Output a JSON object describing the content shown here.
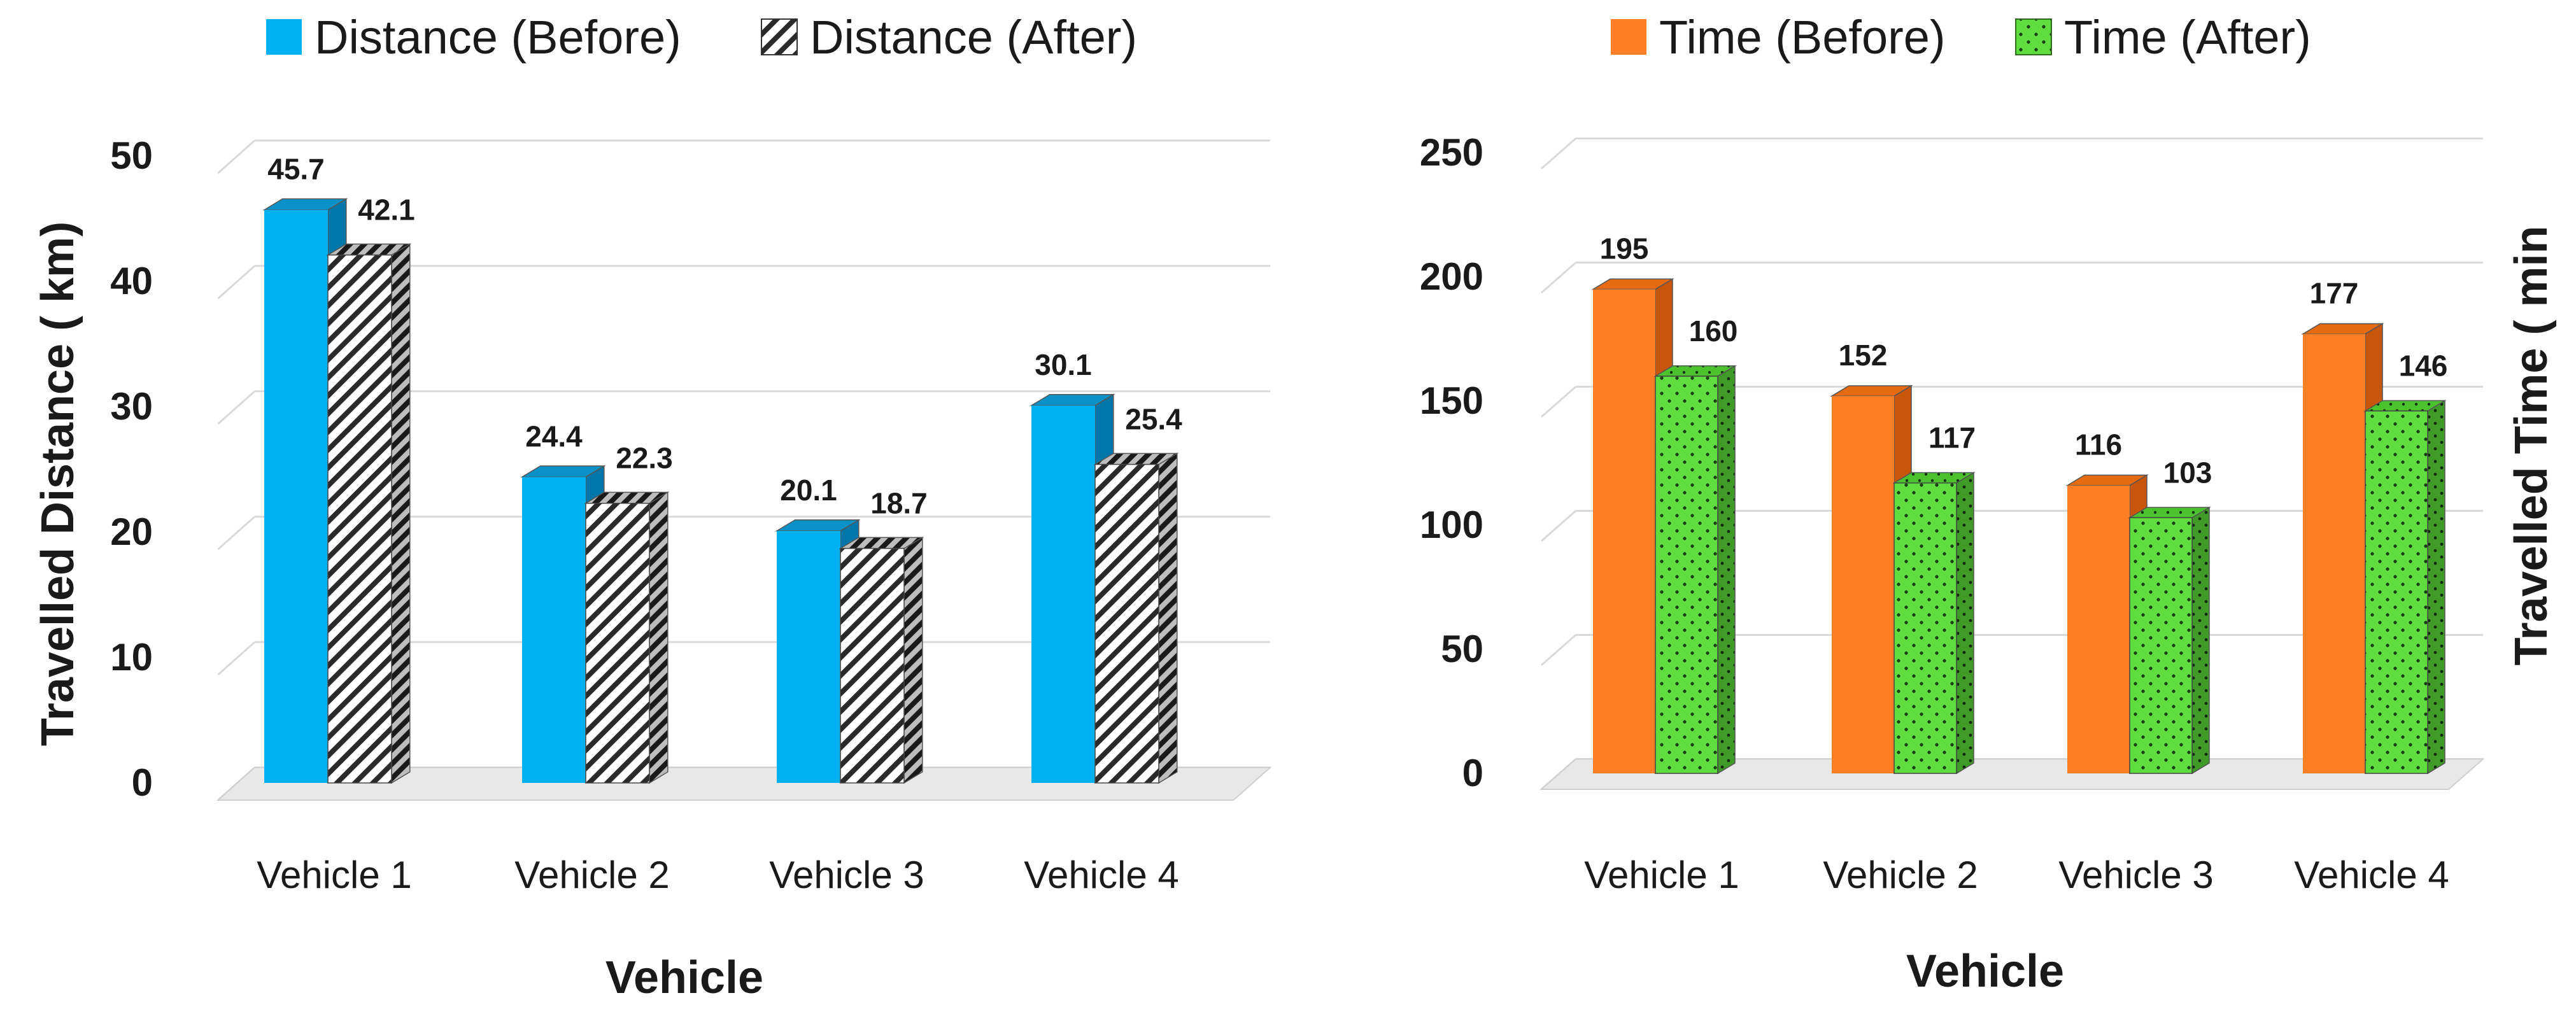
{
  "chart_data": [
    {
      "type": "bar",
      "title": "",
      "xlabel": "Vehicle",
      "ylabel": "Travelled Distance ( km)",
      "ylim": [
        0,
        50
      ],
      "yticks": [
        0,
        10,
        20,
        30,
        40,
        50
      ],
      "categories": [
        "Vehicle 1",
        "Vehicle 2",
        "Vehicle 3",
        "Vehicle 4"
      ],
      "series": [
        {
          "name": "Distance (Before)",
          "values": [
            45.7,
            24.4,
            20.1,
            30.1
          ],
          "color": "#00b0f0",
          "pattern": "solid"
        },
        {
          "name": "Distance (After)",
          "values": [
            42.1,
            22.3,
            18.7,
            25.4
          ],
          "color": "#ffffff",
          "pattern": "diagonal-stripes"
        }
      ],
      "legend": "top-center",
      "ylabel_side": "left"
    },
    {
      "type": "bar",
      "title": "",
      "xlabel": "Vehicle",
      "ylabel": "Travelled Time ( min",
      "ylim": [
        0,
        250
      ],
      "yticks": [
        0,
        50,
        100,
        150,
        200,
        250
      ],
      "categories": [
        "Vehicle 1",
        "Vehicle 2",
        "Vehicle 3",
        "Vehicle 4"
      ],
      "series": [
        {
          "name": "Time (Before)",
          "values": [
            195,
            152,
            116,
            177
          ],
          "color": "#ff7f27",
          "pattern": "solid"
        },
        {
          "name": "Time (After)",
          "values": [
            160,
            117,
            103,
            146
          ],
          "color": "#5fdc3e",
          "pattern": "dots"
        }
      ],
      "legend": "top-center",
      "ylabel_side": "right"
    }
  ]
}
